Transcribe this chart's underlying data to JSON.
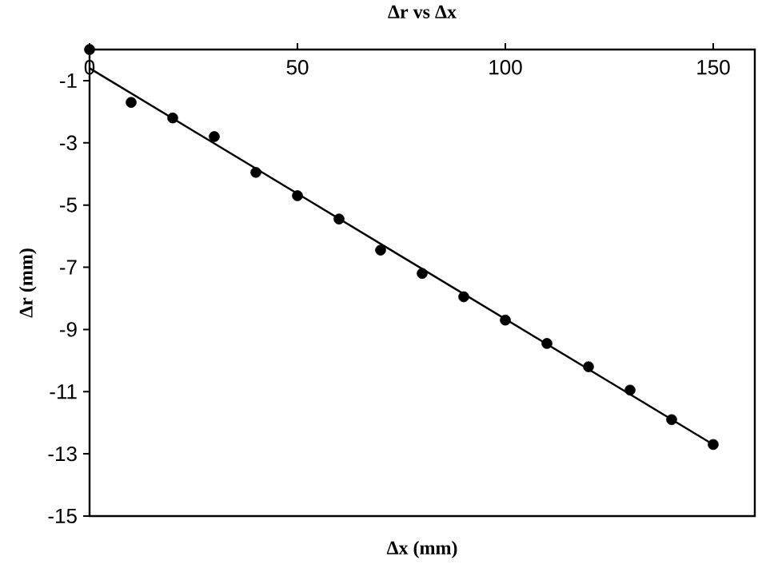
{
  "chart_data": {
    "type": "scatter",
    "title": "Δr vs Δx",
    "xlabel": "Δx (mm)",
    "ylabel": "Δr (mm)",
    "xlim": [
      0,
      160
    ],
    "xticks": [
      0,
      50,
      100,
      150
    ],
    "ylim": [
      -15,
      0
    ],
    "yticks": [
      -1,
      -3,
      -5,
      -7,
      -9,
      -11,
      -13,
      -15
    ],
    "marker": "circle",
    "series": [
      {
        "type": "scatter",
        "color": "#000000",
        "x": [
          0,
          10,
          20,
          30,
          40,
          50,
          60,
          70,
          80,
          90,
          100,
          110,
          120,
          130,
          140,
          150
        ],
        "values": [
          0,
          -1.7,
          -2.2,
          -2.8,
          -3.95,
          -4.7,
          -5.45,
          -6.45,
          -7.2,
          -7.95,
          -8.7,
          -9.45,
          -10.2,
          -10.95,
          -11.9,
          -12.7
        ]
      },
      {
        "type": "line",
        "color": "#000000",
        "marker": "none",
        "x": [
          0,
          150
        ],
        "values": [
          -0.6,
          -12.7
        ]
      }
    ]
  }
}
